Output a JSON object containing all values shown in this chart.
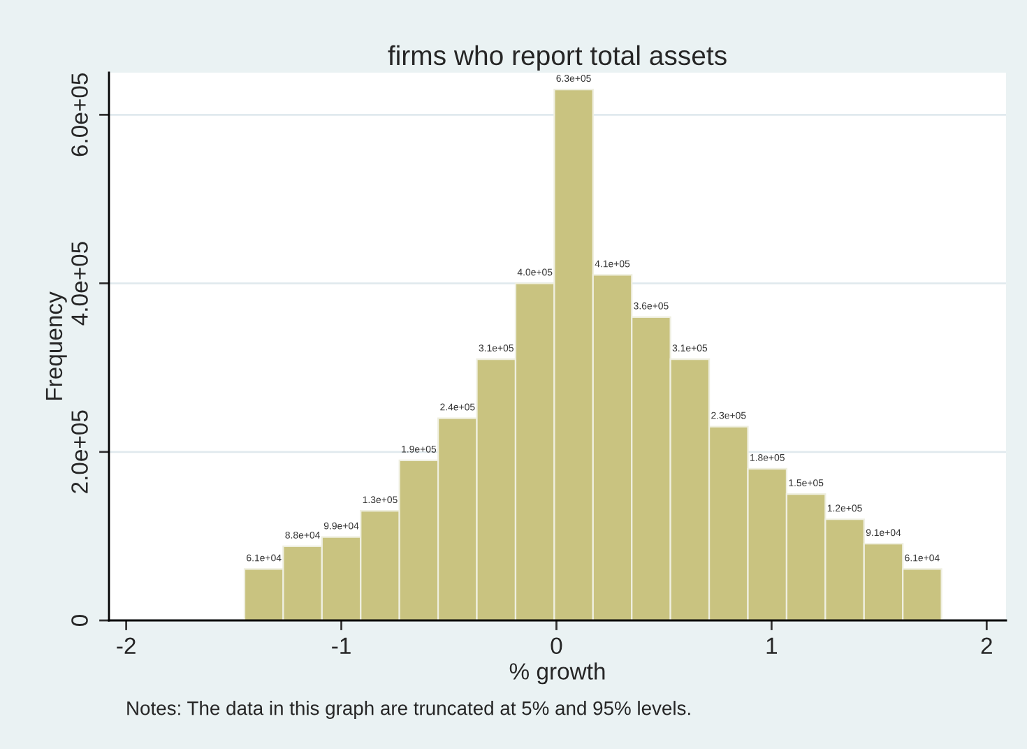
{
  "chart_data": {
    "type": "histogram",
    "title": "firms who report total assets",
    "xlabel": "% growth",
    "ylabel": "Frequency",
    "bins": [
      -1.45,
      -1.27,
      -1.09,
      -0.91,
      -0.73,
      -0.55,
      -0.37,
      -0.19,
      -0.01,
      0.17,
      0.35,
      0.53,
      0.71,
      0.89,
      1.07,
      1.25,
      1.43,
      1.61,
      1.79
    ],
    "values": [
      61000,
      88000,
      99000,
      130000,
      190000,
      240000,
      310000,
      400000,
      630000,
      410000,
      360000,
      310000,
      230000,
      180000,
      150000,
      120000,
      91000,
      61000
    ],
    "value_labels": [
      "6.1e+04",
      "8.8e+04",
      "9.9e+04",
      "1.3e+05",
      "1.9e+05",
      "2.4e+05",
      "3.1e+05",
      "4.0e+05",
      "6.3e+05",
      "4.1e+05",
      "3.6e+05",
      "3.1e+05",
      "2.3e+05",
      "1.8e+05",
      "1.5e+05",
      "1.2e+05",
      "9.1e+04",
      "6.1e+04"
    ],
    "color": "#c9c380",
    "xlim": [
      -2.08,
      2.09
    ],
    "xticks": [
      -2,
      -1,
      0,
      1,
      2
    ],
    "ylim": [
      0,
      650000
    ],
    "yticks": [
      0,
      {
        "value": 200000,
        "label": "2.0e+05"
      },
      {
        "value": 400000,
        "label": "4.0e+05"
      },
      {
        "value": 600000,
        "label": "6.0e+05"
      }
    ],
    "grid": "y",
    "annotations": [
      "Notes: The data in this graph are truncated at 5% and 95% levels."
    ]
  }
}
